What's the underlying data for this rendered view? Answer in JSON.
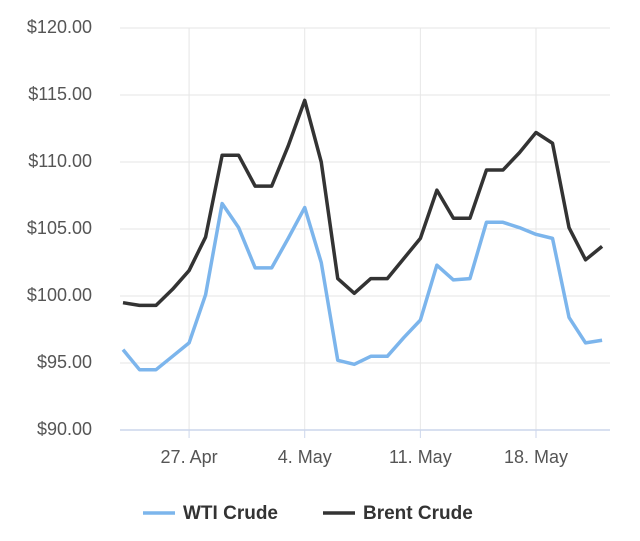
{
  "chart_data": {
    "type": "line",
    "categories": [
      null,
      null,
      null,
      null,
      "27. Apr",
      null,
      null,
      null,
      null,
      null,
      null,
      "4. May",
      null,
      null,
      null,
      null,
      null,
      null,
      "11. May",
      null,
      null,
      null,
      null,
      null,
      null,
      "18. May",
      null,
      null,
      null,
      null
    ],
    "series": [
      {
        "name": "WTI Crude",
        "color": "#7cb5ec",
        "values": [
          96.0,
          94.5,
          94.5,
          95.5,
          96.5,
          100.1,
          106.9,
          105.1,
          102.1,
          102.1,
          104.3,
          106.6,
          102.5,
          95.2,
          94.9,
          95.5,
          95.5,
          96.9,
          98.2,
          102.3,
          101.2,
          101.3,
          105.5,
          105.5,
          105.1,
          104.6,
          104.3,
          98.4,
          96.5,
          96.7
        ]
      },
      {
        "name": "Brent Crude",
        "color": "#333333",
        "values": [
          99.5,
          99.3,
          99.3,
          100.5,
          101.9,
          104.4,
          110.5,
          110.5,
          108.2,
          108.2,
          111.2,
          114.6,
          110.0,
          101.3,
          100.2,
          101.3,
          101.3,
          102.8,
          104.3,
          107.9,
          105.8,
          105.8,
          109.4,
          109.4,
          110.7,
          112.2,
          111.4,
          105.1,
          102.7,
          103.7
        ]
      }
    ],
    "ylim": [
      90,
      120
    ],
    "yticks": [
      {
        "value": 90,
        "label": "$90.00"
      },
      {
        "value": 95,
        "label": "$95.00"
      },
      {
        "value": 100,
        "label": "$100.00"
      },
      {
        "value": 105,
        "label": "$105.00"
      },
      {
        "value": 110,
        "label": "$110.00"
      },
      {
        "value": 115,
        "label": "$115.00"
      },
      {
        "value": 120,
        "label": "$120.00"
      }
    ],
    "grid": true
  }
}
